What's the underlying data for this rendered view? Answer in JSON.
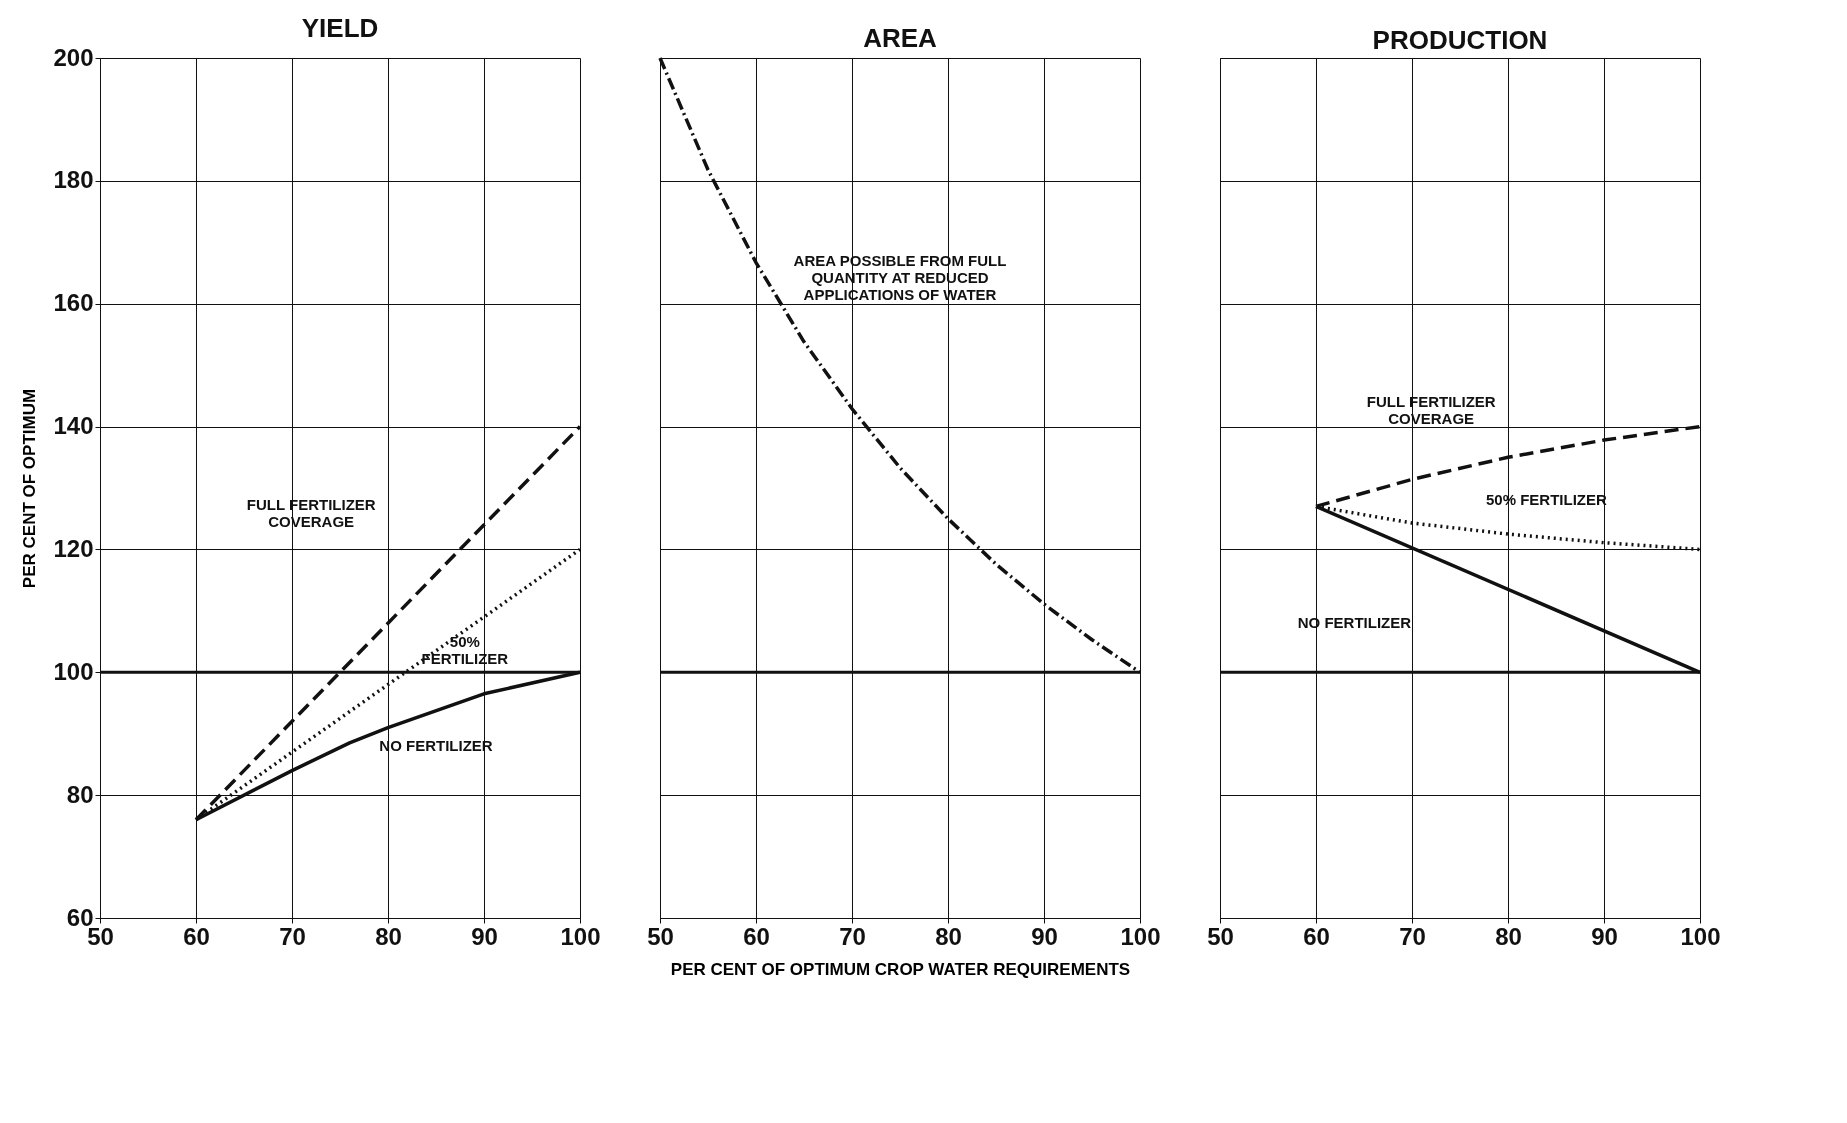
{
  "chart_data": [
    {
      "type": "line",
      "title": "YIELD",
      "ylabel": "PER CENT OF OPTIMUM",
      "xlim": [
        50,
        100
      ],
      "xticks": [
        50,
        60,
        70,
        80,
        90,
        100
      ],
      "ylim": [
        60,
        200
      ],
      "yticks": [
        60,
        80,
        100,
        120,
        140,
        160,
        180,
        200
      ],
      "grid": true,
      "tick_labels": true,
      "series": [
        {
          "color": "#111111",
          "line_style": "dashed",
          "x": [
            60,
            100
          ],
          "values": [
            76,
            140
          ]
        },
        {
          "color": "#111111",
          "line_style": "dotted",
          "x": [
            60,
            100
          ],
          "values": [
            76,
            120
          ]
        },
        {
          "color": "#111111",
          "line_style": "solid",
          "x": [
            60,
            70,
            76,
            80,
            90,
            100
          ],
          "values": [
            76,
            84,
            88.5,
            91,
            96.5,
            100
          ]
        }
      ],
      "ref_lines": [
        {
          "axis": "y",
          "value": 100,
          "color": "#111111"
        }
      ],
      "annotations": [
        "FULL FERTILIZER\nCOVERAGE",
        "50%\nFERTILIZER",
        "NO FERTILIZER"
      ]
    },
    {
      "type": "line",
      "title": "AREA",
      "xlabel": "PER CENT OF OPTIMUM CROP WATER REQUIREMENTS",
      "xlim": [
        50,
        100
      ],
      "xticks": [
        50,
        60,
        70,
        80,
        90,
        100
      ],
      "ylim": [
        60,
        200
      ],
      "yticks": [
        60,
        80,
        100,
        120,
        140,
        160,
        180,
        200
      ],
      "grid": true,
      "tick_labels": "x",
      "series": [
        {
          "color": "#111111",
          "line_style": "dashdot",
          "x": [
            50,
            55,
            60,
            65,
            70,
            75,
            80,
            85,
            90,
            95,
            100
          ],
          "values": [
            200,
            181.8,
            166.7,
            153.8,
            142.9,
            133.3,
            125,
            117.6,
            111.1,
            105.3,
            100
          ]
        }
      ],
      "ref_lines": [
        {
          "axis": "y",
          "value": 100,
          "color": "#111111"
        }
      ],
      "annotations": [
        "AREA POSSIBLE FROM FULL\nQUANTITY AT REDUCED\nAPPLICATIONS OF WATER"
      ]
    },
    {
      "type": "line",
      "title": "PRODUCTION",
      "xlim": [
        50,
        100
      ],
      "xticks": [
        50,
        60,
        70,
        80,
        90,
        100
      ],
      "ylim": [
        60,
        200
      ],
      "yticks": [
        60,
        80,
        100,
        120,
        140,
        160,
        180,
        200
      ],
      "grid": true,
      "tick_labels": "x",
      "series": [
        {
          "color": "#111111",
          "line_style": "dashed",
          "x": [
            60,
            70,
            80,
            90,
            100
          ],
          "values": [
            127,
            131.4,
            135,
            137.8,
            140
          ]
        },
        {
          "color": "#111111",
          "line_style": "dotted",
          "x": [
            60,
            70,
            80,
            90,
            100
          ],
          "values": [
            127,
            124.3,
            122.5,
            121.1,
            120
          ]
        },
        {
          "color": "#111111",
          "line_style": "solid",
          "x": [
            60,
            100
          ],
          "values": [
            127,
            100
          ]
        }
      ],
      "ref_lines": [
        {
          "axis": "y",
          "value": 100,
          "color": "#111111"
        }
      ],
      "annotations": [
        "FULL FERTILIZER\nCOVERAGE",
        "50% FERTILIZER",
        "NO FERTILIZER"
      ]
    }
  ]
}
